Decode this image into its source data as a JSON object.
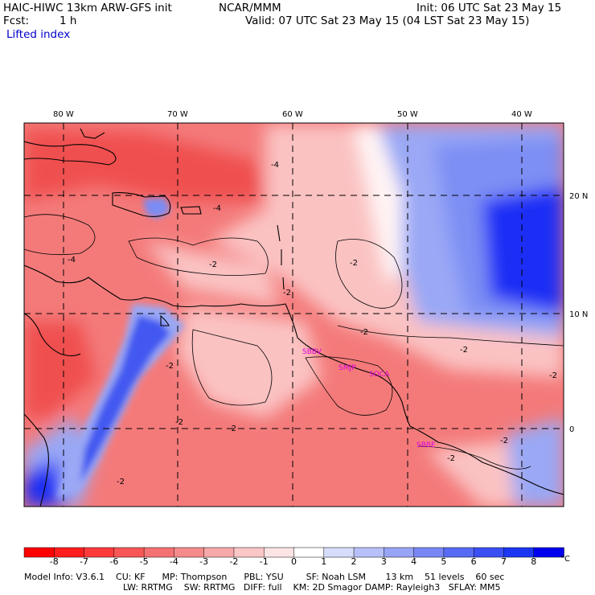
{
  "header": {
    "model_title": "HAIC-HIWC 13km ARW-GFS init",
    "org": "NCAR/MMM",
    "fcst_label": "Fcst:",
    "fcst_value": "1 h",
    "init": "Init: 06 UTC Sat 23 May 15",
    "valid": "Valid: 07 UTC Sat 23 May 15 (04 LST Sat 23 May 15)",
    "field": "Lifted index"
  },
  "map": {
    "longitude_labels": [
      "80 W",
      "70 W",
      "60 W",
      "50 W",
      "40 W"
    ],
    "latitude_labels": [
      "20 N",
      "10 N",
      "0"
    ],
    "contour_labels": [
      "-4",
      "-4",
      "-4",
      "-2",
      "-2",
      "-2",
      "-2",
      "-2",
      "-2",
      "-2",
      "-2",
      "-2",
      "-2",
      "-2",
      "-2"
    ],
    "stations": [
      "SBBV",
      "SMJP",
      "SOCA",
      "SBBE"
    ],
    "station_color": "#dd00dd",
    "colors": {
      "strong_negative": "#ff1a1a",
      "negative": "#f47a7a",
      "weak_negative": "#fbc2c2",
      "neutral": "#fff4f4",
      "positive": "#9aa8f5",
      "strong_positive": "#1c2ef5"
    }
  },
  "colorbar": {
    "labels": [
      "-8",
      "-7",
      "-6",
      "-5",
      "-4",
      "-3",
      "-2",
      "-1",
      "0",
      "1",
      "2",
      "3",
      "4",
      "5",
      "6",
      "7",
      "8"
    ],
    "unit": "°C",
    "colors": [
      "#ff0000",
      "#ff1d1d",
      "#fd3b3b",
      "#f95757",
      "#f57272",
      "#f58b8b",
      "#f7a8a8",
      "#fbc6c6",
      "#fde4e4",
      "#ffffff",
      "#d6dcfb",
      "#b7c0f8",
      "#98a4f6",
      "#7887f5",
      "#586bf4",
      "#3a50f3",
      "#1c37f2",
      "#0000ee"
    ]
  },
  "footer": {
    "line1": "Model Info: V3.6.1    CU: KF      MP: Thompson      PBL: YSU        SF: Noah LSM       13 km    51 levels    60 sec",
    "line2": "LW: RRTMG    SW: RRTMG   DIFF: full    KM: 2D Smagor DAMP: Rayleigh3   SFLAY: MM5"
  }
}
